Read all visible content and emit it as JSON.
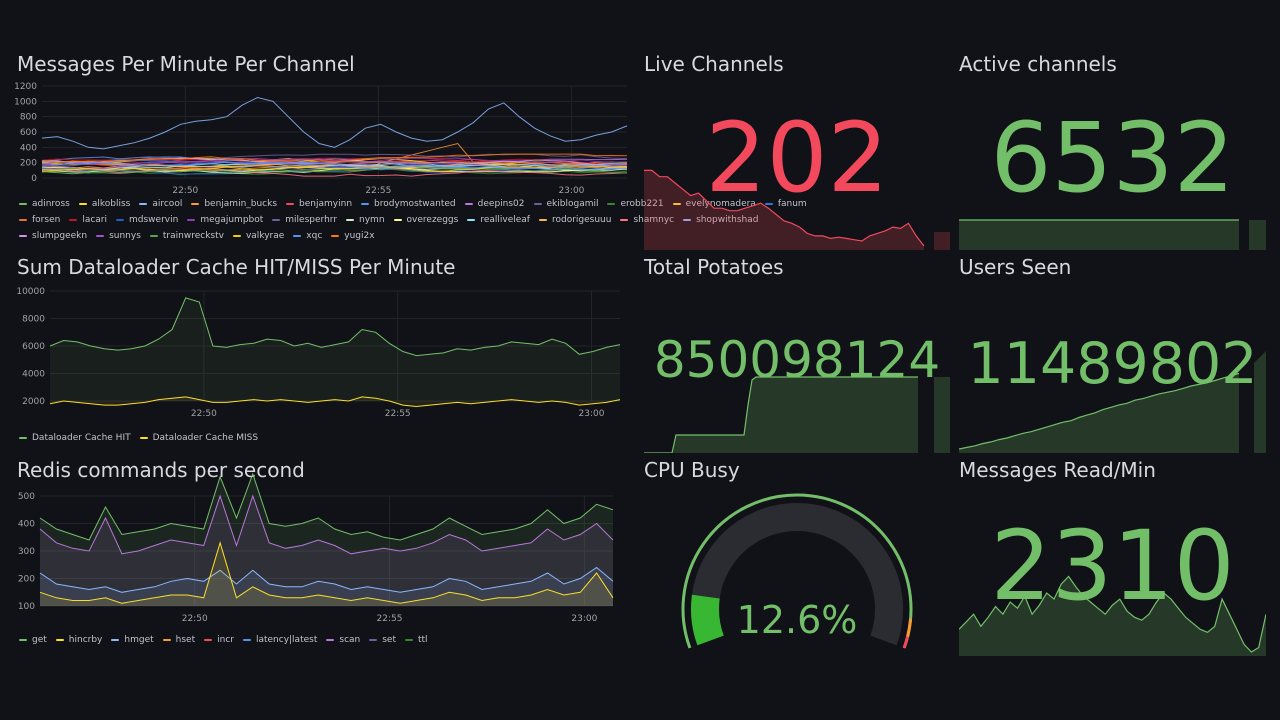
{
  "colors": {
    "green": "#73bf69",
    "red": "#f2495c",
    "bg": "#111217",
    "grid": "#26272c"
  },
  "panels": {
    "messages_per_minute": {
      "title": "Messages Per Minute Per Channel",
      "y_ticks": [
        "0",
        "200",
        "400",
        "600",
        "800",
        "1000",
        "1200"
      ],
      "x_ticks": [
        "22:50",
        "22:55",
        "23:00"
      ],
      "legend": [
        {
          "name": "adinross",
          "color": "#73bf69"
        },
        {
          "name": "alkobliss",
          "color": "#fade2a"
        },
        {
          "name": "aircool",
          "color": "#8ab8ff"
        },
        {
          "name": "benjamin_bucks",
          "color": "#ff9830"
        },
        {
          "name": "benjamyinn",
          "color": "#f2495c"
        },
        {
          "name": "brodymostwanted",
          "color": "#5794f2"
        },
        {
          "name": "deepins02",
          "color": "#b877d9"
        },
        {
          "name": "ekiblogamil",
          "color": "#705da0"
        },
        {
          "name": "erobb221",
          "color": "#37872d"
        },
        {
          "name": "evelynomadera",
          "color": "#fade2a"
        },
        {
          "name": "fanum",
          "color": "#3274d9"
        },
        {
          "name": "forsen",
          "color": "#e0752d"
        },
        {
          "name": "lacari",
          "color": "#c4162a"
        },
        {
          "name": "mdswervin",
          "color": "#1f60c4"
        },
        {
          "name": "megajumpbot",
          "color": "#8f3bb8"
        },
        {
          "name": "milesperhrr",
          "color": "#705da0"
        },
        {
          "name": "nymn",
          "color": "#c8f2c2"
        },
        {
          "name": "overezeggs",
          "color": "#fff899"
        },
        {
          "name": "realliveleaf",
          "color": "#8ae4f5"
        },
        {
          "name": "rodorigesuuu",
          "color": "#ffb357"
        },
        {
          "name": "shamnyc",
          "color": "#ff7383"
        },
        {
          "name": "shopwithshad",
          "color": "#8ab8ff"
        },
        {
          "name": "slumpgeekn",
          "color": "#ca95e5"
        },
        {
          "name": "sunnys",
          "color": "#a352cc"
        },
        {
          "name": "trainwreckstv",
          "color": "#56a64b"
        },
        {
          "name": "valkyrae",
          "color": "#f2cc0c"
        },
        {
          "name": "xqc",
          "color": "#5794f2"
        },
        {
          "name": "yugi2x",
          "color": "#ff780a"
        }
      ]
    },
    "cache": {
      "title": "Sum Dataloader Cache HIT/MISS Per Minute",
      "y_ticks": [
        "2000",
        "4000",
        "6000",
        "8000",
        "10000"
      ],
      "x_ticks": [
        "22:50",
        "22:55",
        "23:00"
      ],
      "legend": [
        {
          "name": "Dataloader Cache HIT",
          "color": "#73bf69"
        },
        {
          "name": "Dataloader Cache MISS",
          "color": "#fade2a"
        }
      ]
    },
    "redis": {
      "title": "Redis commands per second",
      "y_ticks": [
        "100",
        "200",
        "300",
        "400",
        "500"
      ],
      "x_ticks": [
        "22:50",
        "22:55",
        "23:00"
      ],
      "legend": [
        {
          "name": "get",
          "color": "#73bf69"
        },
        {
          "name": "hincrby",
          "color": "#fade2a"
        },
        {
          "name": "hmget",
          "color": "#8ab8ff"
        },
        {
          "name": "hset",
          "color": "#ff9830"
        },
        {
          "name": "incr",
          "color": "#f2495c"
        },
        {
          "name": "latency|latest",
          "color": "#5794f2"
        },
        {
          "name": "scan",
          "color": "#b877d9"
        },
        {
          "name": "set",
          "color": "#705da0"
        },
        {
          "name": "ttl",
          "color": "#37872d"
        }
      ]
    },
    "live_channels": {
      "title": "Live Channels",
      "value": "202"
    },
    "active_channels": {
      "title": "Active channels",
      "value": "6532"
    },
    "total_potatoes": {
      "title": "Total Potatoes",
      "value": "850098124"
    },
    "users_seen": {
      "title": "Users Seen",
      "value": "11489802"
    },
    "cpu_busy": {
      "title": "CPU Busy",
      "value": "12.6%",
      "percent": 12.6
    },
    "messages_read": {
      "title": "Messages Read/Min",
      "value": "2310"
    }
  }
}
